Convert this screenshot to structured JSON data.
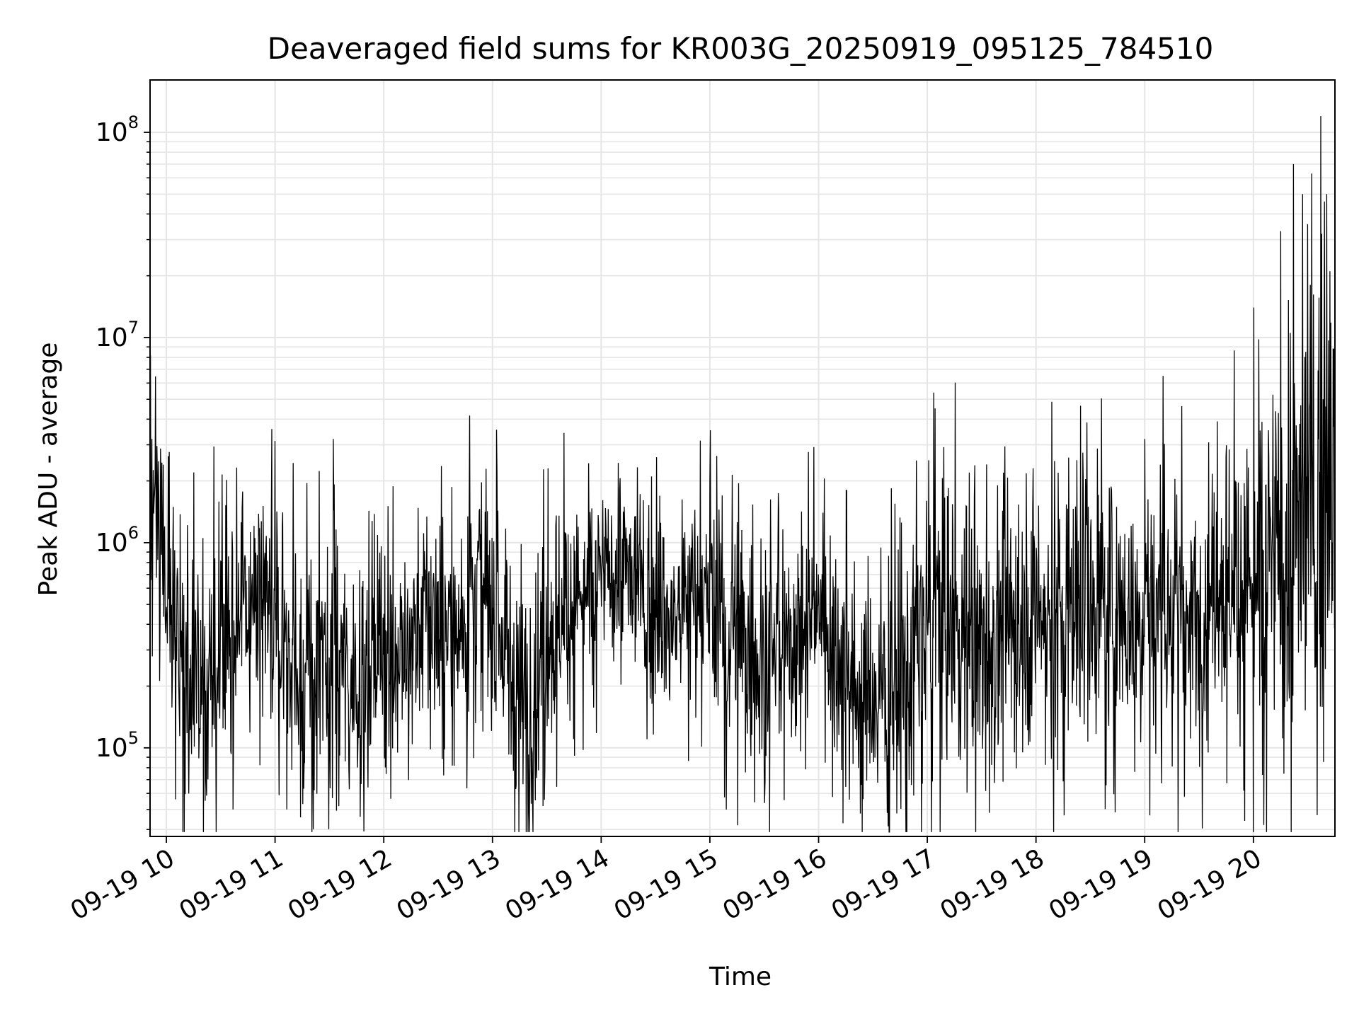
{
  "chart_data": {
    "type": "line",
    "title": "Deaveraged field sums for KR003G_20250919_095125_784510",
    "xlabel": "Time",
    "ylabel": "Peak ADU - average",
    "yscale": "log",
    "grid": true,
    "line_color": "#000000",
    "grid_color": "#e5e5e5",
    "xlim": [
      "2025-09-19 09:51",
      "2025-09-19 20:45"
    ],
    "ylim": [
      37000,
      180000000
    ],
    "x_ticks": [
      {
        "value": "2025-09-19 10:00",
        "label": "09-19 10"
      },
      {
        "value": "2025-09-19 11:00",
        "label": "09-19 11"
      },
      {
        "value": "2025-09-19 12:00",
        "label": "09-19 12"
      },
      {
        "value": "2025-09-19 13:00",
        "label": "09-19 13"
      },
      {
        "value": "2025-09-19 14:00",
        "label": "09-19 14"
      },
      {
        "value": "2025-09-19 15:00",
        "label": "09-19 15"
      },
      {
        "value": "2025-09-19 16:00",
        "label": "09-19 16"
      },
      {
        "value": "2025-09-19 17:00",
        "label": "09-19 17"
      },
      {
        "value": "2025-09-19 18:00",
        "label": "09-19 18"
      },
      {
        "value": "2025-09-19 19:00",
        "label": "09-19 19"
      },
      {
        "value": "2025-09-19 20:00",
        "label": "09-19 20"
      }
    ],
    "y_ticks": [
      {
        "value": 100000,
        "base": "10",
        "exp": "5"
      },
      {
        "value": 1000000,
        "base": "10",
        "exp": "6"
      },
      {
        "value": 10000000,
        "base": "10",
        "exp": "7"
      },
      {
        "value": 100000000,
        "base": "10",
        "exp": "8"
      }
    ],
    "series": [
      {
        "x": [
          "2025-09-19 09:51",
          "2025-09-19 09:55",
          "2025-09-19 10:00",
          "2025-09-19 10:05",
          "2025-09-19 10:10",
          "2025-09-19 10:15",
          "2025-09-19 10:20",
          "2025-09-19 10:30",
          "2025-09-19 10:40",
          "2025-09-19 10:50",
          "2025-09-19 11:00",
          "2025-09-19 11:10",
          "2025-09-19 11:20",
          "2025-09-19 11:30",
          "2025-09-19 11:33",
          "2025-09-19 11:40",
          "2025-09-19 11:50",
          "2025-09-19 12:00",
          "2025-09-19 12:10",
          "2025-09-19 12:20",
          "2025-09-19 12:30",
          "2025-09-19 12:40",
          "2025-09-19 12:50",
          "2025-09-19 13:00",
          "2025-09-19 13:10",
          "2025-09-19 13:20",
          "2025-09-19 13:30",
          "2025-09-19 13:40",
          "2025-09-19 13:50",
          "2025-09-19 14:00",
          "2025-09-19 14:10",
          "2025-09-19 14:20",
          "2025-09-19 14:30",
          "2025-09-19 14:40",
          "2025-09-19 14:50",
          "2025-09-19 15:00",
          "2025-09-19 15:10",
          "2025-09-19 15:20",
          "2025-09-19 15:30",
          "2025-09-19 15:40",
          "2025-09-19 15:50",
          "2025-09-19 16:00",
          "2025-09-19 16:10",
          "2025-09-19 16:20",
          "2025-09-19 16:30",
          "2025-09-19 16:40",
          "2025-09-19 16:50",
          "2025-09-19 17:00",
          "2025-09-19 17:10",
          "2025-09-19 17:20",
          "2025-09-19 17:30",
          "2025-09-19 17:40",
          "2025-09-19 17:50",
          "2025-09-19 18:00",
          "2025-09-19 18:10",
          "2025-09-19 18:20",
          "2025-09-19 18:30",
          "2025-09-19 18:40",
          "2025-09-19 18:50",
          "2025-09-19 19:00",
          "2025-09-19 19:10",
          "2025-09-19 19:20",
          "2025-09-19 19:30",
          "2025-09-19 19:40",
          "2025-09-19 19:50",
          "2025-09-19 20:00",
          "2025-09-19 20:10",
          "2025-09-19 20:20",
          "2025-09-19 20:30",
          "2025-09-19 20:40",
          "2025-09-19 20:45"
        ],
        "base": [
          1800000,
          1500000,
          800000,
          350000,
          250000,
          180000,
          200000,
          350000,
          400000,
          500000,
          400000,
          250000,
          200000,
          250000,
          300000,
          220000,
          250000,
          300000,
          280000,
          400000,
          450000,
          350000,
          700000,
          450000,
          250000,
          150000,
          350000,
          500000,
          550000,
          650000,
          800000,
          600000,
          450000,
          400000,
          600000,
          450000,
          350000,
          300000,
          250000,
          300000,
          400000,
          500000,
          350000,
          200000,
          180000,
          200000,
          250000,
          400000,
          450000,
          350000,
          300000,
          350000,
          450000,
          500000,
          400000,
          450000,
          500000,
          400000,
          450000,
          500000,
          550000,
          400000,
          400000,
          700000,
          700000,
          600000,
          700000,
          1000000,
          1300000,
          1500000,
          1700000
        ],
        "spread": [
          0.55,
          0.55,
          0.6,
          0.65,
          0.6,
          0.6,
          0.6,
          0.6,
          0.6,
          0.6,
          0.6,
          0.6,
          0.6,
          0.6,
          0.6,
          0.6,
          0.6,
          0.6,
          0.55,
          0.55,
          0.55,
          0.55,
          0.55,
          0.6,
          0.6,
          0.6,
          0.55,
          0.5,
          0.45,
          0.45,
          0.45,
          0.45,
          0.5,
          0.5,
          0.5,
          0.55,
          0.55,
          0.55,
          0.55,
          0.55,
          0.5,
          0.5,
          0.55,
          0.55,
          0.6,
          0.65,
          0.7,
          0.7,
          0.7,
          0.7,
          0.7,
          0.7,
          0.7,
          0.7,
          0.7,
          0.7,
          0.7,
          0.7,
          0.65,
          0.65,
          0.65,
          0.65,
          0.65,
          0.65,
          0.65,
          0.8,
          1.0,
          1.1,
          1.1,
          1.0,
          0.9
        ],
        "spikes": [
          {
            "x": "2025-09-19 09:52",
            "y": 3200000
          },
          {
            "x": "2025-09-19 10:15",
            "y": 2200000
          },
          {
            "x": "2025-09-19 11:32",
            "y": 3200000
          },
          {
            "x": "2025-09-19 11:35",
            "y": 52000
          },
          {
            "x": "2025-09-19 12:47",
            "y": 1500000
          },
          {
            "x": "2025-09-19 13:20",
            "y": 55000
          },
          {
            "x": "2025-09-19 14:10",
            "y": 1800000
          },
          {
            "x": "2025-09-19 15:00",
            "y": 2000000
          },
          {
            "x": "2025-09-19 16:15",
            "y": 1800000
          },
          {
            "x": "2025-09-19 18:10",
            "y": 2500000
          },
          {
            "x": "2025-09-19 19:00",
            "y": 3200000
          },
          {
            "x": "2025-09-19 19:40",
            "y": 3900000
          },
          {
            "x": "2025-09-19 20:00",
            "y": 14000000
          },
          {
            "x": "2025-09-19 20:15",
            "y": 33000000
          },
          {
            "x": "2025-09-19 20:22",
            "y": 70000000
          },
          {
            "x": "2025-09-19 20:27",
            "y": 50000000
          },
          {
            "x": "2025-09-19 20:32",
            "y": 63000000
          },
          {
            "x": "2025-09-19 20:37",
            "y": 120000000
          },
          {
            "x": "2025-09-19 20:39",
            "y": 46000000
          }
        ]
      }
    ]
  }
}
